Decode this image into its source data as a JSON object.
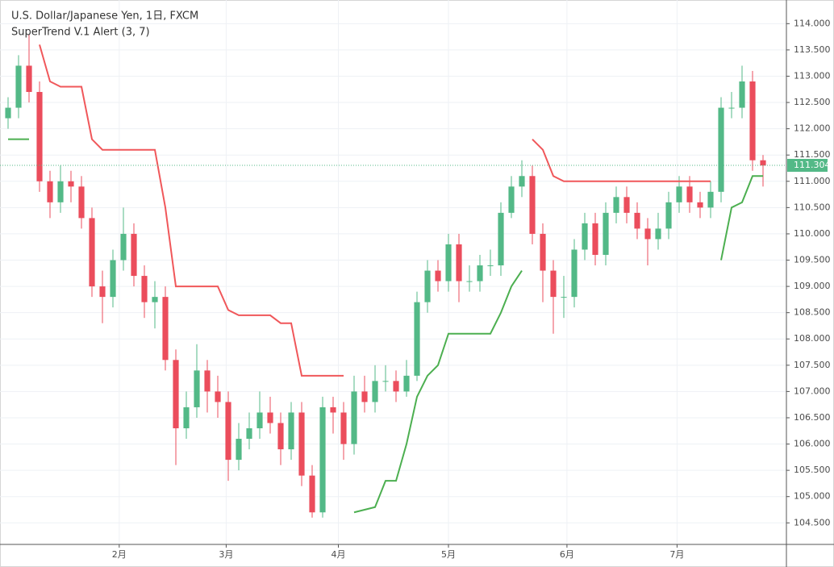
{
  "chart_data": {
    "type": "candlestick",
    "title": "U.S. Dollar/Japanese Yen, 1日, FXCM",
    "subtitle": "SuperTrend V.1 Alert (3, 7)",
    "x": [
      0,
      1,
      2,
      3,
      4,
      5,
      6,
      7,
      8,
      9,
      10,
      11,
      12,
      13,
      14,
      15,
      16,
      17,
      18,
      19,
      20,
      21,
      22,
      23,
      24,
      25,
      26,
      27,
      28,
      29,
      30,
      31,
      32,
      33,
      34,
      35,
      36,
      37,
      38,
      39,
      40,
      41,
      42,
      43,
      44,
      45,
      46,
      47,
      48,
      49,
      50,
      51,
      52,
      53,
      54,
      55,
      56,
      57,
      58,
      59,
      60,
      61,
      62,
      63,
      64,
      65,
      66,
      67,
      68,
      69,
      70,
      71,
      72
    ],
    "open": [
      112.2,
      112.4,
      113.2,
      112.7,
      111.0,
      110.6,
      111.0,
      110.9,
      110.3,
      109.0,
      108.8,
      109.5,
      110.0,
      109.2,
      108.7,
      108.8,
      107.6,
      106.3,
      106.7,
      107.4,
      107.0,
      106.8,
      105.7,
      106.1,
      106.3,
      106.6,
      106.4,
      105.9,
      106.6,
      105.4,
      104.7,
      106.7,
      106.6,
      106.0,
      107.0,
      106.8,
      107.2,
      107.2,
      107.0,
      107.3,
      108.7,
      109.3,
      109.1,
      109.8,
      109.1,
      109.1,
      109.4,
      109.4,
      110.4,
      110.9,
      111.1,
      110.0,
      109.3,
      108.8,
      108.8,
      109.7,
      110.2,
      109.6,
      110.4,
      110.7,
      110.4,
      110.1,
      109.9,
      110.1,
      110.6,
      110.9,
      110.6,
      110.5,
      110.8,
      112.4,
      112.4,
      112.9,
      111.4
    ],
    "high": [
      112.6,
      113.4,
      113.8,
      112.9,
      111.2,
      111.3,
      111.2,
      111.1,
      110.5,
      109.3,
      109.7,
      110.5,
      110.2,
      109.4,
      109.1,
      109.0,
      107.8,
      107.0,
      107.9,
      107.6,
      107.3,
      107.0,
      106.4,
      106.6,
      107.0,
      106.9,
      106.6,
      106.8,
      106.8,
      105.6,
      106.9,
      106.9,
      106.8,
      107.3,
      107.3,
      107.5,
      107.5,
      107.4,
      107.6,
      108.9,
      109.5,
      109.5,
      110.0,
      110.0,
      109.4,
      109.6,
      109.7,
      110.6,
      111.1,
      111.4,
      111.3,
      110.2,
      109.5,
      109.2,
      109.9,
      110.4,
      110.4,
      110.6,
      110.9,
      110.9,
      110.6,
      110.3,
      110.4,
      110.8,
      111.1,
      111.1,
      110.8,
      111.0,
      112.6,
      112.7,
      113.2,
      113.1,
      111.5
    ],
    "low": [
      112.0,
      112.2,
      112.5,
      110.8,
      110.3,
      110.4,
      110.6,
      110.1,
      108.8,
      108.3,
      108.6,
      109.3,
      109.0,
      108.4,
      108.2,
      107.4,
      105.6,
      106.1,
      106.5,
      106.6,
      106.5,
      105.3,
      105.5,
      105.9,
      106.1,
      106.2,
      105.6,
      105.7,
      105.2,
      104.6,
      104.6,
      106.2,
      105.7,
      105.8,
      106.6,
      106.6,
      107.0,
      106.8,
      106.9,
      107.2,
      108.5,
      108.9,
      108.9,
      108.7,
      108.9,
      108.9,
      109.2,
      109.2,
      110.3,
      110.7,
      109.8,
      108.7,
      108.1,
      108.4,
      108.6,
      109.5,
      109.4,
      109.4,
      110.2,
      110.2,
      109.9,
      109.4,
      109.7,
      109.9,
      110.4,
      110.4,
      110.3,
      110.3,
      110.6,
      112.2,
      112.2,
      111.2,
      110.9
    ],
    "close": [
      112.4,
      113.2,
      112.7,
      111.0,
      110.6,
      111.0,
      110.9,
      110.3,
      109.0,
      108.8,
      109.5,
      110.0,
      109.2,
      108.7,
      108.8,
      107.6,
      106.3,
      106.7,
      107.4,
      107.0,
      106.8,
      105.7,
      106.1,
      106.3,
      106.6,
      106.4,
      105.9,
      106.6,
      105.4,
      104.7,
      106.7,
      106.6,
      106.0,
      107.0,
      106.8,
      107.2,
      107.2,
      107.0,
      107.3,
      108.7,
      109.3,
      109.1,
      109.8,
      109.1,
      109.1,
      109.4,
      109.4,
      110.4,
      110.9,
      111.1,
      110.0,
      109.3,
      108.8,
      108.8,
      109.7,
      110.2,
      109.6,
      110.4,
      110.7,
      110.4,
      110.1,
      109.9,
      110.1,
      110.6,
      110.9,
      110.6,
      110.5,
      110.8,
      112.4,
      112.4,
      112.9,
      111.4,
      111.3
    ],
    "up_color": "#53b987",
    "down_color": "#eb4d5c",
    "indicators": [
      {
        "color": "#4caf50",
        "values": [
          111.8,
          111.8,
          111.8,
          null,
          null,
          null,
          null,
          null,
          null,
          null,
          null,
          null,
          null,
          null,
          null,
          null,
          null,
          null,
          null,
          null,
          null,
          null,
          null,
          null,
          null,
          null,
          null,
          null,
          null,
          null,
          null,
          null,
          null,
          104.7,
          104.75,
          104.8,
          105.3,
          105.3,
          106.0,
          106.9,
          107.3,
          107.5,
          108.1,
          108.1,
          108.1,
          108.1,
          108.1,
          108.5,
          109.0,
          109.3,
          null,
          null,
          null,
          null,
          null,
          null,
          null,
          null,
          null,
          null,
          null,
          null,
          null,
          null,
          null,
          null,
          null,
          null,
          109.5,
          110.5,
          110.6,
          111.1,
          111.1
        ]
      },
      {
        "color": "#f0575a",
        "values": [
          null,
          null,
          null,
          113.6,
          112.9,
          112.8,
          112.8,
          112.8,
          111.8,
          111.6,
          111.6,
          111.6,
          111.6,
          111.6,
          111.6,
          110.5,
          109.0,
          109.0,
          109.0,
          109.0,
          109.0,
          108.55,
          108.45,
          108.45,
          108.45,
          108.45,
          108.3,
          108.3,
          107.3,
          107.3,
          107.3,
          107.3,
          107.3,
          null,
          null,
          null,
          null,
          null,
          null,
          null,
          null,
          null,
          null,
          null,
          null,
          null,
          null,
          null,
          null,
          null,
          111.8,
          111.6,
          111.1,
          111.0,
          111.0,
          111.0,
          111.0,
          111.0,
          111.0,
          111.0,
          111.0,
          111.0,
          111.0,
          111.0,
          111.0,
          111.0,
          111.0,
          111.0,
          null,
          null,
          null,
          null,
          null
        ]
      }
    ],
    "last_price": 111.304,
    "last_price_color": "#53b987",
    "xlim": [
      -0.77,
      74.23
    ],
    "ylim": [
      104.09,
      114.45
    ],
    "xticks": [
      {
        "value": 10.6,
        "label": "2月"
      },
      {
        "value": 20.8,
        "label": "3月"
      },
      {
        "value": 31.5,
        "label": "4月"
      },
      {
        "value": 42,
        "label": "5月"
      },
      {
        "value": 53.3,
        "label": "6月"
      },
      {
        "value": 63.8,
        "label": "7月"
      }
    ],
    "yticks": [
      {
        "value": 104.5,
        "label": "104.500"
      },
      {
        "value": 105,
        "label": "105.000"
      },
      {
        "value": 105.5,
        "label": "105.500"
      },
      {
        "value": 106,
        "label": "106.000"
      },
      {
        "value": 106.5,
        "label": "106.500"
      },
      {
        "value": 107,
        "label": "107.000"
      },
      {
        "value": 107.5,
        "label": "107.500"
      },
      {
        "value": 108,
        "label": "108.000"
      },
      {
        "value": 108.5,
        "label": "108.500"
      },
      {
        "value": 109,
        "label": "109.000"
      },
      {
        "value": 109.5,
        "label": "109.500"
      },
      {
        "value": 110,
        "label": "110.000"
      },
      {
        "value": 110.5,
        "label": "110.500"
      },
      {
        "value": 111,
        "label": "111.000"
      },
      {
        "value": 111.5,
        "label": "111.500"
      },
      {
        "value": 112,
        "label": "112.000"
      },
      {
        "value": 112.5,
        "label": "112.500"
      },
      {
        "value": 113,
        "label": "113.000"
      },
      {
        "value": 113.5,
        "label": "113.500"
      },
      {
        "value": 114,
        "label": "114.000"
      }
    ],
    "grid": true
  }
}
